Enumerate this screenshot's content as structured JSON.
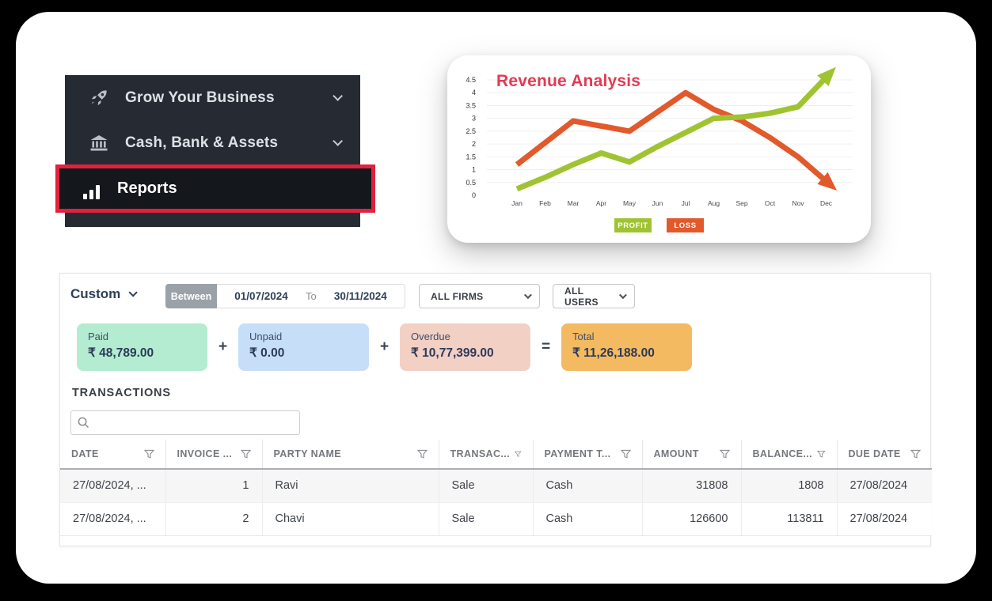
{
  "sidebar": {
    "items": [
      {
        "label": "Grow Your Business",
        "icon": "rocket-icon"
      },
      {
        "label": "Cash, Bank & Assets",
        "icon": "bank-icon"
      },
      {
        "label": "Reports",
        "icon": "bar-chart-icon",
        "highlighted": true
      }
    ],
    "highlight_color": "#e3203f"
  },
  "chart_data": {
    "type": "line",
    "title": "Revenue Analysis",
    "title_color": "#e23b55",
    "x": [
      "Jan",
      "Feb",
      "Mar",
      "Apr",
      "May",
      "Jun",
      "Jul",
      "Aug",
      "Sep",
      "Oct",
      "Nov",
      "Dec"
    ],
    "yticks": [
      0,
      0.5,
      1,
      1.5,
      2,
      2.5,
      3,
      3.5,
      4,
      4.5
    ],
    "ylim": [
      0,
      4.5
    ],
    "grid": true,
    "legend_position": "bottom",
    "series": [
      {
        "name": "PROFIT",
        "color": "#a0c332",
        "values": [
          0.25,
          0.7,
          1.2,
          1.65,
          1.3,
          1.9,
          2.45,
          3.0,
          3.05,
          3.2,
          3.45,
          4.6
        ]
      },
      {
        "name": "LOSS",
        "color": "#e2592b",
        "values": [
          1.2,
          2.05,
          2.9,
          2.7,
          2.5,
          3.25,
          4.0,
          3.35,
          2.9,
          2.25,
          1.5,
          0.55
        ]
      }
    ]
  },
  "filters": {
    "range_label": "Custom",
    "between_label": "Between",
    "date_from": "01/07/2024",
    "to_label": "To",
    "date_to": "30/11/2024",
    "firms_selected": "ALL FIRMS",
    "users_selected": "ALL USERS"
  },
  "summary": {
    "operators": [
      "+",
      "+",
      "="
    ],
    "cards": [
      {
        "label": "Paid",
        "amount": "₹ 48,789.00",
        "bg": "#b4ecd1"
      },
      {
        "label": "Unpaid",
        "amount": "₹ 0.00",
        "bg": "#c7def8"
      },
      {
        "label": "Overdue",
        "amount": "₹ 10,77,399.00",
        "bg": "#f3d0c4"
      },
      {
        "label": "Total",
        "amount": "₹ 11,26,188.00",
        "bg": "#f4ba62"
      }
    ]
  },
  "transactions": {
    "title": "TRANSACTIONS",
    "search_value": "",
    "columns": [
      "DATE",
      "INVOICE ...",
      "PARTY NAME",
      "TRANSAC...",
      "PAYMENT T...",
      "AMOUNT",
      "BALANCE...",
      "DUE DATE"
    ],
    "rows": [
      [
        "27/08/2024, ...",
        "1",
        "Ravi",
        "Sale",
        "Cash",
        "31808",
        "1808",
        "27/08/2024"
      ],
      [
        "27/08/2024, ...",
        "2",
        "Chavi",
        "Sale",
        "Cash",
        "126600",
        "113811",
        "27/08/2024"
      ]
    ]
  }
}
